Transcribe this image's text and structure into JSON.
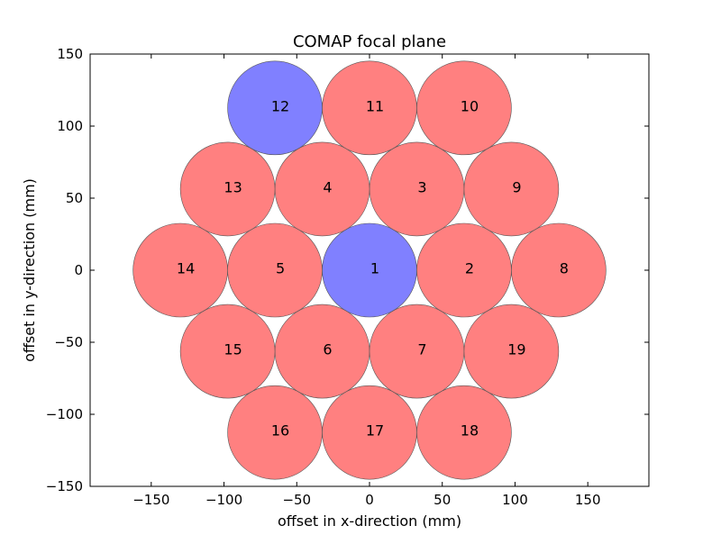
{
  "chart_data": {
    "type": "scatter",
    "title": "COMAP focal plane",
    "xlabel": "offset in x-direction (mm)",
    "ylabel": "offset in y-direction (mm)",
    "xlim": [
      -192,
      192
    ],
    "ylim": [
      -150,
      150
    ],
    "x_ticks": [
      -150,
      -100,
      -50,
      0,
      50,
      100,
      150
    ],
    "x_tick_labels": [
      "−150",
      "−100",
      "−50",
      "0",
      "50",
      "100",
      "150"
    ],
    "y_ticks": [
      -150,
      -100,
      -50,
      0,
      50,
      100,
      150
    ],
    "y_tick_labels": [
      "−150",
      "−100",
      "−50",
      "0",
      "50",
      "100",
      "150"
    ],
    "grid": false,
    "legend": "none",
    "marker_radius_mm": 32.5,
    "colors": {
      "default": "#ff8080",
      "highlight": "#8080ff",
      "edge": "#555555"
    },
    "points": [
      {
        "label": "1",
        "x": 0,
        "y": 0,
        "highlight": true
      },
      {
        "label": "2",
        "x": 65,
        "y": 0,
        "highlight": false
      },
      {
        "label": "3",
        "x": 32.5,
        "y": 56.3,
        "highlight": false
      },
      {
        "label": "4",
        "x": -32.5,
        "y": 56.3,
        "highlight": false
      },
      {
        "label": "5",
        "x": -65,
        "y": 0,
        "highlight": false
      },
      {
        "label": "6",
        "x": -32.5,
        "y": -56.3,
        "highlight": false
      },
      {
        "label": "7",
        "x": 32.5,
        "y": -56.3,
        "highlight": false
      },
      {
        "label": "8",
        "x": 130,
        "y": 0,
        "highlight": false
      },
      {
        "label": "9",
        "x": 97.5,
        "y": 56.3,
        "highlight": false
      },
      {
        "label": "10",
        "x": 65,
        "y": 112.6,
        "highlight": false
      },
      {
        "label": "11",
        "x": 0,
        "y": 112.6,
        "highlight": false
      },
      {
        "label": "12",
        "x": -65,
        "y": 112.6,
        "highlight": true
      },
      {
        "label": "13",
        "x": -97.5,
        "y": 56.3,
        "highlight": false
      },
      {
        "label": "14",
        "x": -130,
        "y": 0,
        "highlight": false
      },
      {
        "label": "15",
        "x": -97.5,
        "y": -56.3,
        "highlight": false
      },
      {
        "label": "16",
        "x": -65,
        "y": -112.6,
        "highlight": false
      },
      {
        "label": "17",
        "x": 0,
        "y": -112.6,
        "highlight": false
      },
      {
        "label": "18",
        "x": 65,
        "y": -112.6,
        "highlight": false
      },
      {
        "label": "19",
        "x": 97.5,
        "y": -56.3,
        "highlight": false
      }
    ]
  }
}
